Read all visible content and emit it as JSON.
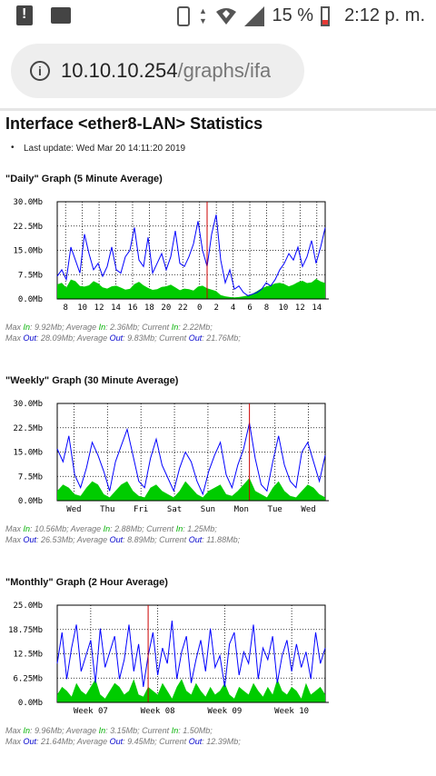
{
  "status_bar": {
    "battery": "15 %",
    "time": "2:12 p. m."
  },
  "browser": {
    "url_host": "10.10.10.254",
    "url_path": "/graphs/ifa"
  },
  "page": {
    "title": "Interface <ether8-LAN> Statistics",
    "last_update": "Last update: Wed Mar 20 14:11:20 2019"
  },
  "colors": {
    "in": "#00cc00",
    "out": "#0000ff",
    "now_line": "#cc0000"
  },
  "chart_data": [
    {
      "type": "area",
      "title": "\"Daily\" Graph (5 Minute Average)",
      "ytick_labels": [
        "30.0Mb",
        "22.5Mb",
        "15.0Mb",
        "7.5Mb",
        "0.0Mb"
      ],
      "ylim": [
        0,
        30
      ],
      "xtick_labels": [
        "8",
        "10",
        "12",
        "14",
        "16",
        "18",
        "20",
        "22",
        "0",
        "2",
        "4",
        "6",
        "8",
        "10",
        "12",
        "14"
      ],
      "series": [
        {
          "name": "In",
          "values": [
            4.5,
            5,
            3.5,
            6,
            5.5,
            4,
            3.8,
            4.2,
            5.5,
            4.8,
            3.6,
            3.2,
            3.9,
            4.1,
            3.5,
            2.9,
            3.1,
            4.6,
            5.3,
            4.2,
            3.4,
            2.8,
            3.0,
            3.7,
            3.9,
            4.4,
            3.6,
            2.7,
            3.2,
            3.0,
            2.6,
            3.8,
            4.1,
            3.3,
            2.9,
            2.4,
            1.2,
            0.8,
            0.6,
            0.5,
            0.6,
            0.8,
            1.1,
            1.6,
            2.4,
            3.3,
            3.8,
            4.2,
            4.8,
            5.0,
            4.6,
            3.9,
            4.4,
            5.2,
            5.6,
            4.9,
            5.1,
            6.2,
            5.4,
            4.9
          ]
        },
        {
          "name": "Out",
          "values": [
            7,
            9,
            6,
            16,
            12,
            8,
            20,
            14,
            9,
            11,
            7,
            10,
            16,
            9,
            8,
            13,
            15,
            22,
            12,
            10,
            19,
            8,
            11,
            14,
            9,
            13,
            21,
            11,
            10,
            13,
            17,
            24,
            15,
            10,
            20,
            26,
            12,
            5,
            9,
            3,
            4,
            2,
            1,
            1.5,
            2,
            3,
            5,
            4,
            6,
            9,
            11,
            14,
            12,
            16,
            10,
            13,
            18,
            11,
            16,
            22
          ]
        }
      ],
      "now_index": 33,
      "stats": {
        "max_in": "9.92Mb",
        "avg_in": "2.36Mb",
        "cur_in": "2.22Mb",
        "max_out": "28.09Mb",
        "avg_out": "9.83Mb",
        "cur_out": "21.76Mb"
      }
    },
    {
      "type": "area",
      "title": "\"Weekly\" Graph (30 Minute Average)",
      "ytick_labels": [
        "30.0Mb",
        "22.5Mb",
        "15.0Mb",
        "7.5Mb",
        "0.0Mb"
      ],
      "ylim": [
        0,
        30
      ],
      "xtick_labels": [
        "Wed",
        "Thu",
        "Fri",
        "Sat",
        "Sun",
        "Mon",
        "Tue",
        "Wed"
      ],
      "series": [
        {
          "name": "In",
          "values": [
            3,
            5,
            4,
            2,
            1.5,
            4,
            6,
            5,
            2,
            1,
            3,
            5,
            6,
            3,
            1.5,
            1,
            4,
            5,
            3,
            2,
            1,
            3,
            6,
            4,
            2,
            1,
            3,
            4,
            5,
            2,
            1.5,
            3,
            5,
            7,
            3,
            2,
            1,
            4,
            6,
            3,
            1.5,
            1,
            3,
            5,
            4,
            2,
            1
          ]
        },
        {
          "name": "Out",
          "values": [
            16,
            12,
            20,
            8,
            4,
            10,
            18,
            14,
            9,
            3,
            12,
            17,
            22,
            14,
            6,
            4,
            13,
            19,
            11,
            7,
            3,
            10,
            15,
            12,
            6,
            2,
            9,
            14,
            18,
            8,
            4,
            11,
            16,
            24,
            13,
            5,
            3,
            12,
            20,
            11,
            6,
            4,
            15,
            18,
            12,
            6,
            14
          ]
        }
      ],
      "now_index": 33,
      "stats": {
        "max_in": "10.56Mb",
        "avg_in": "2.88Mb",
        "cur_in": "1.25Mb",
        "max_out": "26.53Mb",
        "avg_out": "8.89Mb",
        "cur_out": "11.88Mb"
      }
    },
    {
      "type": "area",
      "title": "\"Monthly\" Graph (2 Hour Average)",
      "ytick_labels": [
        "25.0Mb",
        "18.75Mb",
        "12.5Mb",
        "6.25Mb",
        "0.0Mb"
      ],
      "ylim": [
        0,
        25
      ],
      "xtick_labels": [
        "Week 07",
        "Week 08",
        "Week 09",
        "Week 10"
      ],
      "series": [
        {
          "name": "In",
          "values": [
            2,
            4,
            3,
            1.5,
            5,
            3,
            2,
            4,
            6,
            2,
            1,
            3,
            5,
            4,
            2,
            3,
            6,
            2,
            1.5,
            4,
            3,
            2,
            5,
            3,
            1,
            4,
            6,
            3,
            2,
            5,
            3,
            1.5,
            4,
            2,
            3,
            5,
            2,
            1,
            4,
            3,
            2,
            5,
            3,
            1.5,
            4,
            2,
            6,
            3,
            2,
            4,
            3,
            1,
            5,
            2,
            3,
            4,
            2
          ]
        },
        {
          "name": "Out",
          "values": [
            10,
            18,
            6,
            14,
            20,
            8,
            12,
            16,
            5,
            19,
            9,
            13,
            17,
            6,
            11,
            20,
            8,
            15,
            4,
            12,
            18,
            7,
            14,
            10,
            21,
            6,
            13,
            17,
            5,
            11,
            16,
            8,
            19,
            9,
            12,
            4,
            15,
            18,
            7,
            13,
            10,
            20,
            6,
            14,
            11,
            17,
            5,
            12,
            16,
            8,
            15,
            9,
            13,
            6,
            18,
            10,
            14
          ]
        }
      ],
      "now_index": 19,
      "stats": {
        "max_in": "9.96Mb",
        "avg_in": "3.15Mb",
        "cur_in": "1.50Mb",
        "max_out": "21.64Mb",
        "avg_out": "9.45Mb",
        "cur_out": "12.39Mb"
      }
    }
  ]
}
